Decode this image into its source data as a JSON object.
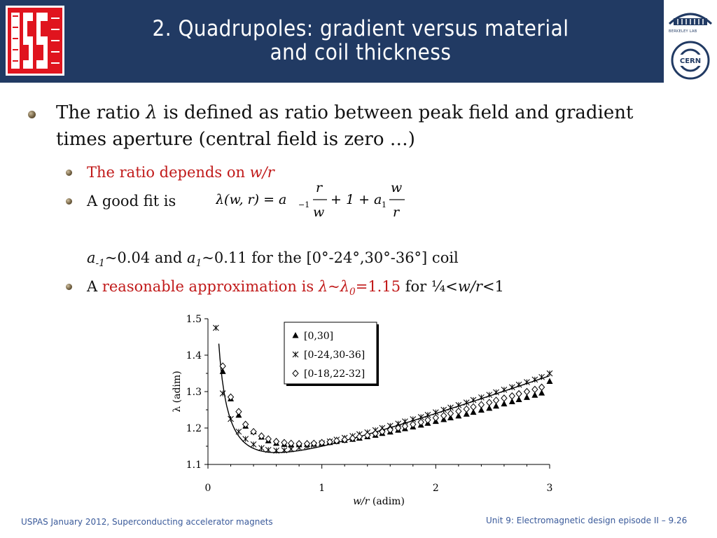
{
  "header": {
    "title_line1": "2. Quadrupoles: gradient versus material",
    "title_line2": "and coil thickness",
    "logo_left": "USPAS",
    "logo_right_top": "BERKELEY LAB",
    "logo_right_bottom": "CERN"
  },
  "bullets": {
    "main_a": "The ratio ",
    "main_symbol": "λ",
    "main_b": " is defined as ratio between peak field and gradient times aperture (central field is zero …)",
    "sub1_a": "The ratio depends on ",
    "sub1_b": "w/r",
    "sub2": "A good fit is",
    "formula_lhs": "λ(w, r) = a",
    "formula_sub_m1": "−1",
    "formula_plus": "+ 1 + a",
    "formula_sub_1": "1",
    "formula_r": "r",
    "formula_w": "w",
    "coef_a": "a",
    "coef_a_sub": "-1",
    "coef_text1": "~0.04  and ",
    "coef_b": "a",
    "coef_b_sub": "1",
    "coef_text2": "~0.11 for the [0°-24°,30°-36°] coil",
    "sub3_a": "A ",
    "sub3_red": "reasonable approximation is ",
    "sub3_lambda": "λ~λ",
    "sub3_lambda_sub": "0",
    "sub3_val": "=1.15",
    "sub3_for": " for  ¼<",
    "sub3_wr": "w/r",
    "sub3_end": "<1"
  },
  "chart_data": {
    "type": "scatter",
    "xlabel_italic": "w/r",
    "xlabel_units": " (adim)",
    "ylabel": "λ  (adim)",
    "xlim": [
      0,
      3
    ],
    "ylim": [
      1.1,
      1.5
    ],
    "xticks": [
      "0",
      "1",
      "2",
      "3"
    ],
    "yticks": [
      "1.1",
      "1.2",
      "1.3",
      "1.4",
      "1.5"
    ],
    "legend_position": "top-center",
    "series": [
      {
        "name": "[0,30]",
        "marker": "triangle",
        "x": [
          0.13,
          0.2,
          0.27,
          0.33,
          0.4,
          0.47,
          0.53,
          0.6,
          0.67,
          0.73,
          0.8,
          0.87,
          0.93,
          1.0,
          1.07,
          1.13,
          1.2,
          1.27,
          1.33,
          1.4,
          1.47,
          1.53,
          1.6,
          1.67,
          1.73,
          1.8,
          1.87,
          1.93,
          2.0,
          2.07,
          2.13,
          2.2,
          2.27,
          2.33,
          2.4,
          2.47,
          2.53,
          2.6,
          2.67,
          2.73,
          2.8,
          2.87,
          2.93,
          3.0
        ],
        "y": [
          1.355,
          1.28,
          1.235,
          1.205,
          1.19,
          1.175,
          1.165,
          1.158,
          1.155,
          1.154,
          1.154,
          1.155,
          1.156,
          1.158,
          1.16,
          1.163,
          1.166,
          1.169,
          1.172,
          1.176,
          1.18,
          1.185,
          1.189,
          1.194,
          1.198,
          1.203,
          1.208,
          1.213,
          1.218,
          1.223,
          1.228,
          1.233,
          1.238,
          1.243,
          1.249,
          1.254,
          1.26,
          1.266,
          1.272,
          1.278,
          1.284,
          1.29,
          1.296,
          1.328
        ]
      },
      {
        "name": "[0-24,30-36]",
        "marker": "asterisk",
        "x": [
          0.07,
          0.13,
          0.2,
          0.27,
          0.33,
          0.4,
          0.47,
          0.53,
          0.6,
          0.67,
          0.73,
          0.8,
          0.87,
          0.93,
          1.0,
          1.07,
          1.13,
          1.2,
          1.27,
          1.33,
          1.4,
          1.47,
          1.53,
          1.6,
          1.67,
          1.73,
          1.8,
          1.87,
          1.93,
          2.0,
          2.07,
          2.13,
          2.2,
          2.27,
          2.33,
          2.4,
          2.47,
          2.53,
          2.6,
          2.67,
          2.73,
          2.8,
          2.87,
          2.93,
          3.0
        ],
        "y": [
          1.475,
          1.295,
          1.225,
          1.19,
          1.17,
          1.155,
          1.145,
          1.14,
          1.138,
          1.139,
          1.142,
          1.146,
          1.15,
          1.154,
          1.158,
          1.163,
          1.168,
          1.173,
          1.178,
          1.183,
          1.188,
          1.194,
          1.2,
          1.206,
          1.212,
          1.218,
          1.224,
          1.23,
          1.236,
          1.243,
          1.25,
          1.256,
          1.263,
          1.27,
          1.277,
          1.284,
          1.291,
          1.298,
          1.305,
          1.312,
          1.319,
          1.326,
          1.333,
          1.34,
          1.35
        ]
      },
      {
        "name": "[0-18,22-32]",
        "marker": "diamond",
        "x": [
          0.13,
          0.2,
          0.27,
          0.33,
          0.4,
          0.47,
          0.53,
          0.6,
          0.67,
          0.73,
          0.8,
          0.87,
          0.93,
          1.0,
          1.07,
          1.13,
          1.2,
          1.27,
          1.33,
          1.4,
          1.47,
          1.53,
          1.6,
          1.67,
          1.73,
          1.8,
          1.87,
          1.93,
          2.0,
          2.07,
          2.13,
          2.2,
          2.27,
          2.33,
          2.4,
          2.47,
          2.53,
          2.6,
          2.67,
          2.73,
          2.8,
          2.87,
          2.93
        ],
        "y": [
          1.37,
          1.285,
          1.245,
          1.21,
          1.19,
          1.178,
          1.17,
          1.163,
          1.16,
          1.158,
          1.157,
          1.157,
          1.158,
          1.16,
          1.162,
          1.165,
          1.168,
          1.172,
          1.176,
          1.18,
          1.185,
          1.19,
          1.195,
          1.2,
          1.205,
          1.21,
          1.216,
          1.222,
          1.228,
          1.234,
          1.24,
          1.246,
          1.252,
          1.258,
          1.264,
          1.27,
          1.276,
          1.282,
          1.288,
          1.294,
          1.3,
          1.306,
          1.312
        ]
      }
    ],
    "fit_curve": {
      "a_m1": 0.04,
      "a_1": 0.11
    }
  },
  "footer": {
    "left": "USPAS January 2012,  Superconducting accelerator magnets",
    "right": "Unit 9: Electromagnetic design episode II – 9.26"
  },
  "colors": {
    "header_bg": "#213a63",
    "accent_red": "#c11a1a",
    "footer_text": "#3a5a9a",
    "logo_red": "#e0141e"
  }
}
